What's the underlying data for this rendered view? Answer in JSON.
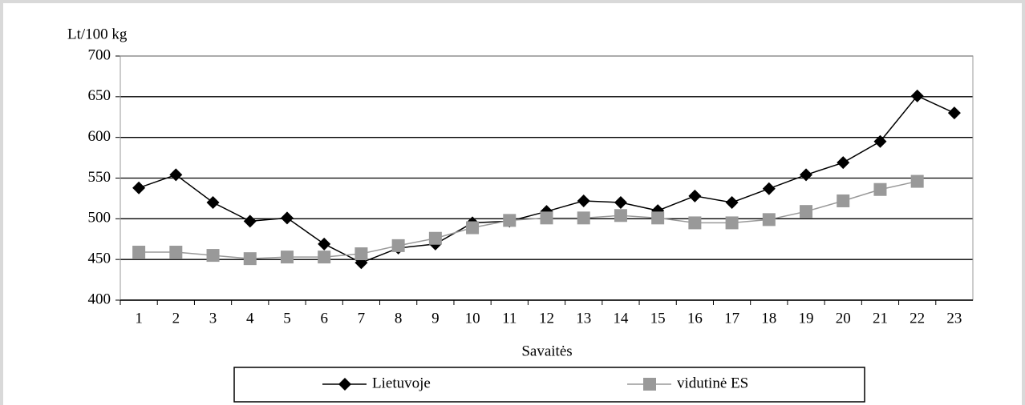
{
  "chart_data": {
    "type": "line",
    "y_label": "Lt/100 kg",
    "x_label": "Savaitės",
    "categories": [
      "1",
      "2",
      "3",
      "4",
      "5",
      "6",
      "7",
      "8",
      "9",
      "10",
      "11",
      "12",
      "13",
      "14",
      "15",
      "16",
      "17",
      "18",
      "19",
      "20",
      "21",
      "22",
      "23"
    ],
    "series": [
      {
        "name": "Lietuvoje",
        "color": "#000000",
        "marker": "diamond",
        "values": [
          538,
          554,
          520,
          497,
          501,
          469,
          446,
          464,
          469,
          495,
          497,
          509,
          522,
          520,
          510,
          528,
          520,
          537,
          554,
          569,
          595,
          651,
          630
        ]
      },
      {
        "name": "vidutinė ES",
        "color": "#999999",
        "marker": "square",
        "values": [
          459,
          459,
          455,
          451,
          453,
          453,
          457,
          467,
          476,
          489,
          498,
          501,
          501,
          504,
          501,
          495,
          495,
          499,
          509,
          522,
          536,
          546,
          null
        ]
      }
    ],
    "ylim": [
      400,
      700
    ],
    "yticks": [
      400,
      450,
      500,
      550,
      600,
      650,
      700
    ],
    "grid": true
  }
}
